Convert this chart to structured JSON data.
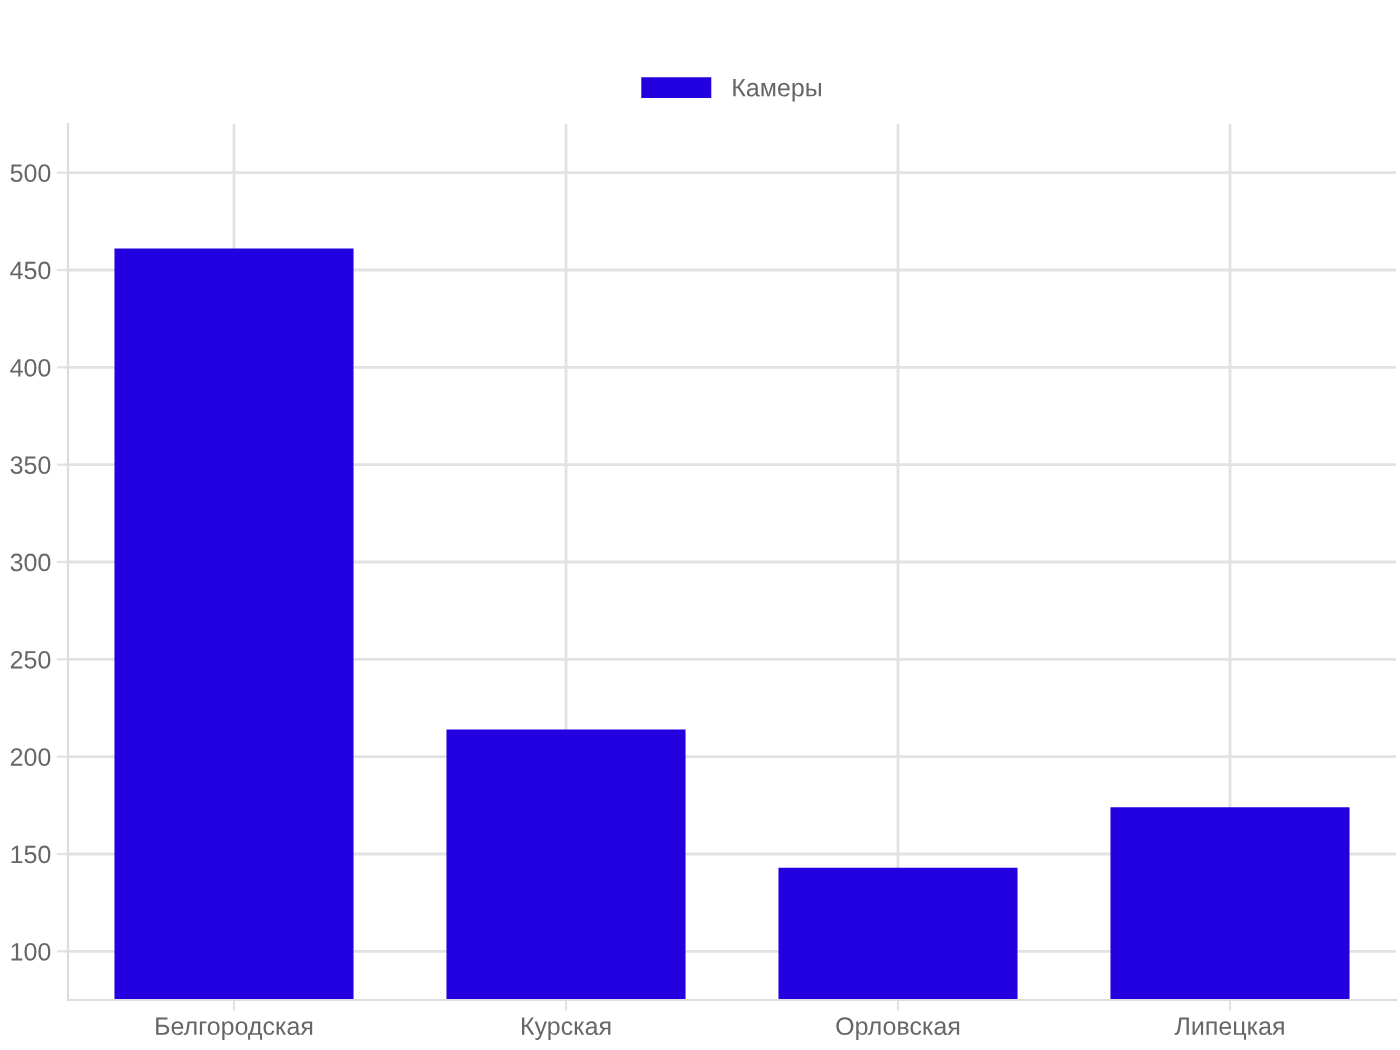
{
  "chart_data": {
    "type": "bar",
    "categories": [
      "Белгородская",
      "Курская",
      "Орловская",
      "Липецкая"
    ],
    "series": [
      {
        "name": "Камеры",
        "color": "#2200e0",
        "values": [
          461,
          214,
          143,
          174
        ]
      }
    ],
    "ylim": [
      75,
      525
    ],
    "yticks": [
      100,
      150,
      200,
      250,
      300,
      350,
      400,
      450,
      500
    ],
    "grid": true,
    "legend": "top"
  }
}
